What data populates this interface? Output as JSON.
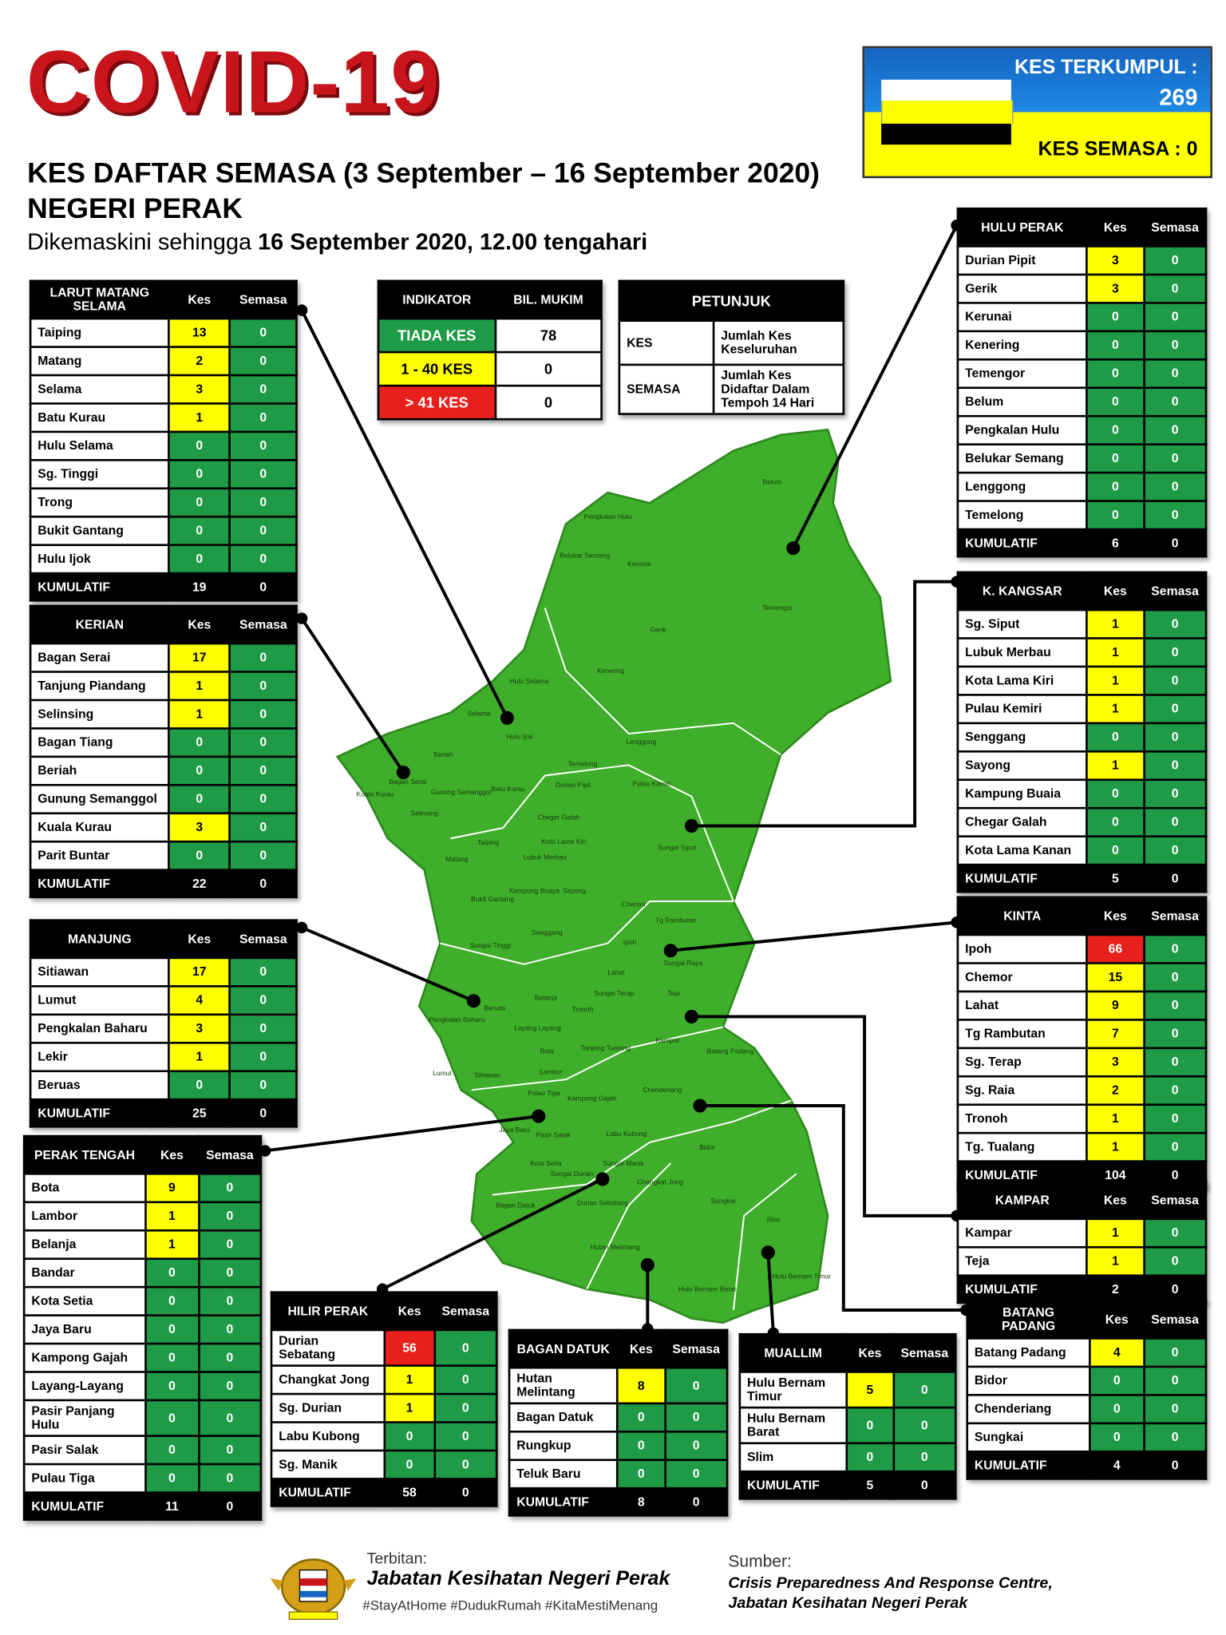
{
  "header": {
    "title": "COVID-19",
    "subtitle": "KES DAFTAR SEMASA (3 September – 16 September 2020)",
    "state": "NEGERI PERAK",
    "updated_prefix": "Dikemaskini sehingga",
    "updated_date": "16 September 2020, 12.00 tengahari"
  },
  "summary": {
    "total_label": "KES TERKUMPUL :",
    "total": 269,
    "active_label": "KES SEMASA :",
    "active": 0
  },
  "indicator": {
    "headers": [
      "INDIKATOR",
      "BIL. MUKIM"
    ],
    "rows": [
      [
        "TIADA KES",
        78
      ],
      [
        "1 - 40 KES",
        0
      ],
      [
        "> 41 KES",
        0
      ]
    ]
  },
  "legend": {
    "title": "PETUNJUK",
    "rows": [
      [
        "KES",
        "Jumlah Kes Keseluruhan"
      ],
      [
        "SEMASA",
        "Jumlah Kes Didaftar Dalam Tempoh 14 Hari"
      ]
    ]
  },
  "districts": [
    {
      "name": "LARUT MATANG SELAMA",
      "columns": [
        "Kes",
        "Semasa"
      ],
      "rows": [
        [
          "Taiping",
          13,
          0
        ],
        [
          "Matang",
          2,
          0
        ],
        [
          "Selama",
          3,
          0
        ],
        [
          "Batu Kurau",
          1,
          0
        ],
        [
          "Hulu Selama",
          0,
          0
        ],
        [
          "Sg. Tinggi",
          0,
          0
        ],
        [
          "Trong",
          0,
          0
        ],
        [
          "Bukit Gantang",
          0,
          0
        ],
        [
          "Hulu Ijok",
          0,
          0
        ]
      ],
      "total_label": "KUMULATIF",
      "total": [
        19,
        0
      ]
    },
    {
      "name": "KERIAN",
      "columns": [
        "Kes",
        "Semasa"
      ],
      "rows": [
        [
          "Bagan Serai",
          17,
          0
        ],
        [
          "Tanjung Piandang",
          1,
          0
        ],
        [
          "Selinsing",
          1,
          0
        ],
        [
          "Bagan Tiang",
          0,
          0
        ],
        [
          "Beriah",
          0,
          0
        ],
        [
          "Gunung Semanggol",
          0,
          0
        ],
        [
          "Kuala Kurau",
          3,
          0
        ],
        [
          "Parit Buntar",
          0,
          0
        ]
      ],
      "total_label": "KUMULATIF",
      "total": [
        22,
        0
      ]
    },
    {
      "name": "MANJUNG",
      "columns": [
        "Kes",
        "Semasa"
      ],
      "rows": [
        [
          "Sitiawan",
          17,
          0
        ],
        [
          "Lumut",
          4,
          0
        ],
        [
          "Pengkalan Baharu",
          3,
          0
        ],
        [
          "Lekir",
          1,
          0
        ],
        [
          "Beruas",
          0,
          0
        ]
      ],
      "total_label": "KUMULATIF",
      "total": [
        25,
        0
      ]
    },
    {
      "name": "PERAK TENGAH",
      "columns": [
        "Kes",
        "Semasa"
      ],
      "rows": [
        [
          "Bota",
          9,
          0
        ],
        [
          "Lambor",
          1,
          0
        ],
        [
          "Belanja",
          1,
          0
        ],
        [
          "Bandar",
          0,
          0
        ],
        [
          "Kota Setia",
          0,
          0
        ],
        [
          "Jaya Baru",
          0,
          0
        ],
        [
          "Kampong Gajah",
          0,
          0
        ],
        [
          "Layang-Layang",
          0,
          0
        ],
        [
          "Pasir Panjang Hulu",
          0,
          0
        ],
        [
          "Pasir Salak",
          0,
          0
        ],
        [
          "Pulau Tiga",
          0,
          0
        ]
      ],
      "total_label": "KUMULATIF",
      "total": [
        11,
        0
      ]
    },
    {
      "name": "HILIR PERAK",
      "columns": [
        "Kes",
        "Semasa"
      ],
      "rows": [
        [
          "Durian Sebatang",
          56,
          0
        ],
        [
          "Changkat Jong",
          1,
          0
        ],
        [
          "Sg. Durian",
          1,
          0
        ],
        [
          "Labu Kubong",
          0,
          0
        ],
        [
          "Sg. Manik",
          0,
          0
        ]
      ],
      "total_label": "KUMULATIF",
      "total": [
        58,
        0
      ]
    },
    {
      "name": "BAGAN DATUK",
      "columns": [
        "Kes",
        "Semasa"
      ],
      "rows": [
        [
          "Hutan Melintang",
          8,
          0
        ],
        [
          "Bagan Datuk",
          0,
          0
        ],
        [
          "Rungkup",
          0,
          0
        ],
        [
          "Teluk Baru",
          0,
          0
        ]
      ],
      "total_label": "KUMULATIF",
      "total": [
        8,
        0
      ]
    },
    {
      "name": "MUALLIM",
      "columns": [
        "Kes",
        "Semasa"
      ],
      "rows": [
        [
          "Hulu Bernam Timur",
          5,
          0
        ],
        [
          "Hulu Bernam Barat",
          0,
          0
        ],
        [
          "Slim",
          0,
          0
        ]
      ],
      "total_label": "KUMULATIF",
      "total": [
        5,
        0
      ]
    },
    {
      "name": "BATANG PADANG",
      "columns": [
        "Kes",
        "Semasa"
      ],
      "rows": [
        [
          "Batang Padang",
          4,
          0
        ],
        [
          "Bidor",
          0,
          0
        ],
        [
          "Chenderiang",
          0,
          0
        ],
        [
          "Sungkai",
          0,
          0
        ]
      ],
      "total_label": "KUMULATIF",
      "total": [
        4,
        0
      ]
    },
    {
      "name": "HULU PERAK",
      "columns": [
        "Kes",
        "Semasa"
      ],
      "rows": [
        [
          "Durian Pipit",
          3,
          0
        ],
        [
          "Gerik",
          3,
          0
        ],
        [
          "Kerunai",
          0,
          0
        ],
        [
          "Kenering",
          0,
          0
        ],
        [
          "Temengor",
          0,
          0
        ],
        [
          "Belum",
          0,
          0
        ],
        [
          "Pengkalan Hulu",
          0,
          0
        ],
        [
          "Belukar Semang",
          0,
          0
        ],
        [
          "Lenggong",
          0,
          0
        ],
        [
          "Temelong",
          0,
          0
        ]
      ],
      "total_label": "KUMULATIF",
      "total": [
        6,
        0
      ]
    },
    {
      "name": "K. KANGSAR",
      "columns": [
        "Kes",
        "Semasa"
      ],
      "rows": [
        [
          "Sg. Siput",
          1,
          0
        ],
        [
          "Lubuk Merbau",
          1,
          0
        ],
        [
          "Kota Lama Kiri",
          1,
          0
        ],
        [
          "Pulau Kemiri",
          1,
          0
        ],
        [
          "Senggang",
          0,
          0
        ],
        [
          "Sayong",
          1,
          0
        ],
        [
          "Kampung Buaia",
          0,
          0
        ],
        [
          "Chegar Galah",
          0,
          0
        ],
        [
          "Kota Lama Kanan",
          0,
          0
        ]
      ],
      "total_label": "KUMULATIF",
      "total": [
        5,
        0
      ]
    },
    {
      "name": "KINTA",
      "columns": [
        "Kes",
        "Semasa"
      ],
      "rows": [
        [
          "Ipoh",
          66,
          0
        ],
        [
          "Chemor",
          15,
          0
        ],
        [
          "Lahat",
          9,
          0
        ],
        [
          "Tg Rambutan",
          7,
          0
        ],
        [
          "Sg. Terap",
          3,
          0
        ],
        [
          "Sg. Raia",
          2,
          0
        ],
        [
          "Tronoh",
          1,
          0
        ],
        [
          "Tg. Tualang",
          1,
          0
        ]
      ],
      "total_label": "KUMULATIF",
      "total": [
        104,
        0
      ]
    },
    {
      "name": "KAMPAR",
      "columns": [
        "Kes",
        "Semasa"
      ],
      "rows": [
        [
          "Kampar",
          1,
          0
        ],
        [
          "Teja",
          1,
          0
        ]
      ],
      "total_label": "KUMULATIF",
      "total": [
        2,
        0
      ]
    }
  ],
  "map": {
    "labels": [
      "Belum",
      "Pengkalan Hulu",
      "Belukar Semang",
      "Kerunai",
      "Temengor",
      "Gerik",
      "Kenering",
      "Hulu Selama",
      "Selama",
      "Hulu Ijok",
      "Lenggong",
      "Temelong",
      "Durian Pipit",
      "Pulau Kamiri",
      "Beriah",
      "Gunong Semanggol",
      "Batu Kurau",
      "Bagan Serai",
      "Kuala Kurau",
      "Selinsing",
      "Chegar Galah",
      "Sungai Siput",
      "Taiping",
      "Matang",
      "Kota Lama Kiri",
      "Lubuk Merbau",
      "Sayong",
      "Kampong Buaya",
      "Bukit Gantang",
      "Chemor",
      "Tg Rambutan",
      "Senggang",
      "Sungai Tinggi",
      "Ipoh",
      "Sungai Raya",
      "Lahat",
      "Pengkalan Baharu",
      "Beruas",
      "Belanja",
      "Sungai Terap",
      "Teja",
      "Tronoh",
      "Layang Layang",
      "Kampar",
      "Bota",
      "Tanjong Tualang",
      "Lumut",
      "Sitiawan",
      "Lambor",
      "Batang Padang",
      "Chenderiang",
      "Pulau Tiga",
      "Kampong Gajah",
      "Jaya Baru",
      "Pasir Salak",
      "Labu Kubong",
      "Bidor",
      "Kota Setia",
      "Sungai Manik",
      "Changkat Jong",
      "Sungai Durian",
      "Sungkai",
      "Bagan Datuk",
      "Durian Sebatang",
      "Slim",
      "Hutan Melintang",
      "Hulu Bernam Timur",
      "Hulu Bernam Barat"
    ]
  },
  "footer": {
    "publisher_label": "Terbitan:",
    "publisher": "Jabatan Kesihatan Negeri Perak",
    "hashtags": "#StayAtHome #DudukRumah #KitaMestiMenang",
    "source_label": "Sumber:",
    "source_line1": "Crisis Preparedness And Response Centre,",
    "source_line2": "Jabatan Kesihatan Negeri Perak"
  }
}
